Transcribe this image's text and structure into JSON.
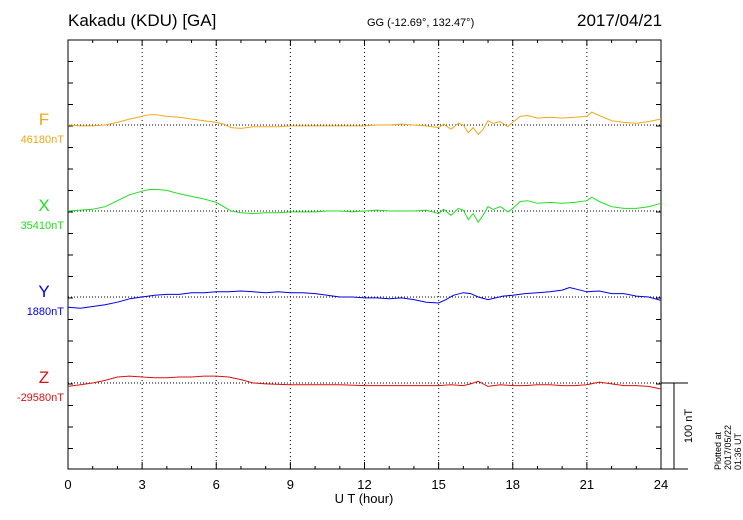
{
  "header": {
    "station": "Kakadu (KDU)  [GA]",
    "coords": "GG (-12.69°, 132.47°)",
    "date": "2017/04/21"
  },
  "plotted_note": "Plotted at 2017/05/22 01:36 UT",
  "scale_label": "100 nT",
  "chart_data": {
    "type": "line",
    "xlabel": "U T (hour)",
    "xlim": [
      0,
      24
    ],
    "xticks": [
      0,
      3,
      6,
      9,
      12,
      15,
      18,
      21,
      24
    ],
    "grid": true,
    "scale_bar_nT": 100,
    "series": [
      {
        "name": "F",
        "baseline_label": "46180nT",
        "color": "#f0a818",
        "x": [
          0,
          0.5,
          1,
          1.5,
          2,
          2.5,
          3,
          3.3,
          3.6,
          4,
          4.5,
          5,
          5.5,
          6,
          6.3,
          6.6,
          7,
          7.5,
          8,
          8.5,
          9,
          9.5,
          10,
          10.5,
          11,
          11.5,
          12,
          12.5,
          13,
          13.5,
          14,
          14.5,
          15,
          15.2,
          15.5,
          15.8,
          16,
          16.2,
          16.4,
          16.6,
          16.8,
          17,
          17.2,
          17.5,
          17.8,
          18,
          18.3,
          18.6,
          19,
          19.5,
          20,
          20.5,
          21,
          21.2,
          21.5,
          22,
          22.5,
          23,
          23.5,
          24
        ],
        "y": [
          0,
          -1,
          -1,
          0,
          3,
          7,
          10,
          12,
          12,
          10,
          9,
          7,
          5,
          3,
          1,
          -3,
          -4,
          -2,
          -2,
          -2,
          -1,
          -1,
          -1,
          -1,
          -1,
          -1,
          -1,
          0,
          0,
          1,
          0,
          -1,
          -3,
          1,
          -5,
          2,
          0,
          -9,
          -3,
          -11,
          -5,
          5,
          2,
          4,
          -2,
          3,
          10,
          11,
          8,
          9,
          8,
          9,
          10,
          15,
          11,
          5,
          3,
          2,
          4,
          7
        ]
      },
      {
        "name": "X",
        "baseline_label": "35410nT",
        "color": "#20e020",
        "x": [
          0,
          0.5,
          1,
          1.5,
          2,
          2.5,
          3,
          3.3,
          3.6,
          4,
          4.5,
          5,
          5.5,
          6,
          6.3,
          6.6,
          7,
          7.5,
          8,
          8.5,
          9,
          9.5,
          10,
          10.5,
          11,
          11.5,
          12,
          12.5,
          13,
          13.5,
          14,
          14.5,
          15,
          15.2,
          15.5,
          15.8,
          16,
          16.2,
          16.4,
          16.6,
          16.8,
          17,
          17.2,
          17.5,
          17.8,
          18,
          18.3,
          18.6,
          19,
          19.5,
          20,
          20.5,
          21,
          21.2,
          21.5,
          22,
          22.5,
          23,
          23.5,
          24
        ],
        "y": [
          0,
          1,
          2,
          5,
          12,
          19,
          23,
          25,
          25,
          24,
          20,
          17,
          14,
          10,
          5,
          0,
          -2,
          -3,
          -2,
          -2,
          -1,
          -1,
          -1,
          0,
          0,
          -1,
          0,
          1,
          0,
          0,
          0,
          1,
          -3,
          2,
          -5,
          3,
          1,
          -10,
          -3,
          -13,
          -5,
          5,
          2,
          5,
          -1,
          3,
          11,
          12,
          9,
          10,
          9,
          10,
          12,
          16,
          11,
          5,
          3,
          3,
          5,
          9
        ]
      },
      {
        "name": "Y",
        "baseline_label": "1880nT",
        "color": "#0000ee",
        "x": [
          0,
          0.5,
          1,
          1.5,
          2,
          2.5,
          3,
          3.5,
          4,
          4.5,
          5,
          5.5,
          6,
          6.5,
          7,
          7.5,
          8,
          8.5,
          9,
          9.5,
          10,
          10.5,
          11,
          11.5,
          12,
          12.5,
          13,
          13.5,
          14,
          14.5,
          15,
          15.3,
          15.6,
          16,
          16.3,
          16.6,
          17,
          17.3,
          17.6,
          18,
          18.5,
          19,
          19.5,
          20,
          20.3,
          20.6,
          21,
          21.5,
          22,
          22.5,
          23,
          23.5,
          24
        ],
        "y": [
          -12,
          -13,
          -11,
          -9,
          -6,
          -2,
          0,
          2,
          3,
          3,
          5,
          5,
          6,
          6,
          7,
          6,
          5,
          6,
          5,
          5,
          4,
          2,
          0,
          0,
          -1,
          -1,
          -2,
          -1,
          -3,
          -6,
          -7,
          -3,
          2,
          5,
          4,
          0,
          -3,
          -1,
          1,
          2,
          4,
          5,
          6,
          8,
          11,
          9,
          6,
          7,
          4,
          4,
          1,
          0,
          -4
        ]
      },
      {
        "name": "Z",
        "baseline_label": "-29580nT",
        "color": "#dd1111",
        "x": [
          0,
          0.5,
          1,
          1.5,
          2,
          2.5,
          3,
          3.5,
          4,
          4.5,
          5,
          5.5,
          6,
          6.5,
          7,
          7.5,
          8,
          9,
          10,
          11,
          12,
          13,
          14,
          15,
          15.5,
          16,
          16.3,
          16.6,
          17,
          17.5,
          18,
          18.5,
          19,
          19.5,
          20,
          20.5,
          21,
          21.5,
          22,
          22.5,
          23,
          23.5,
          24
        ],
        "y": [
          -4,
          -2,
          0,
          3,
          7,
          8,
          7,
          6,
          6,
          7,
          7,
          8,
          8,
          7,
          4,
          0,
          -1,
          -2,
          -2,
          -2,
          -3,
          -3,
          -3,
          -3,
          -2,
          -3,
          -1,
          2,
          -4,
          -2,
          -3,
          -3,
          -2,
          -2,
          -3,
          -3,
          -2,
          1,
          -1,
          -3,
          -3,
          -4,
          -7
        ]
      }
    ]
  }
}
